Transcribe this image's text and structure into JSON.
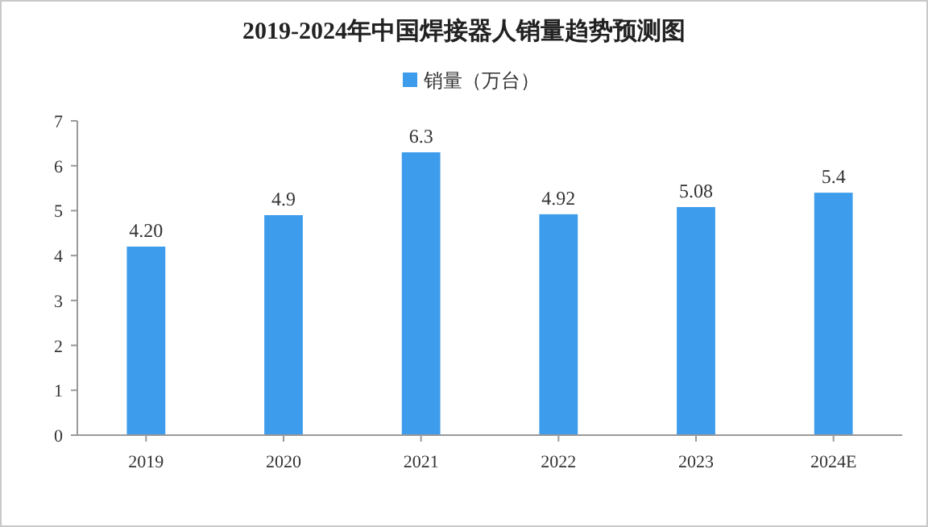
{
  "chart_data": {
    "type": "bar",
    "title": "2019-2024年中国焊接器人销量趋势预测图",
    "categories": [
      "2019",
      "2020",
      "2021",
      "2022",
      "2023",
      "2024E"
    ],
    "series": [
      {
        "name": "销量（万台）",
        "color": "#3d9cec",
        "values": [
          4.2,
          4.9,
          6.3,
          4.92,
          5.08,
          5.4
        ]
      }
    ],
    "value_labels": [
      "4.20",
      "4.9",
      "6.3",
      "4.92",
      "5.08",
      "5.4"
    ],
    "ylim": [
      0,
      7
    ],
    "yticks": [
      0,
      1,
      2,
      3,
      4,
      5,
      6,
      7
    ],
    "grid": false,
    "legend": "top"
  }
}
